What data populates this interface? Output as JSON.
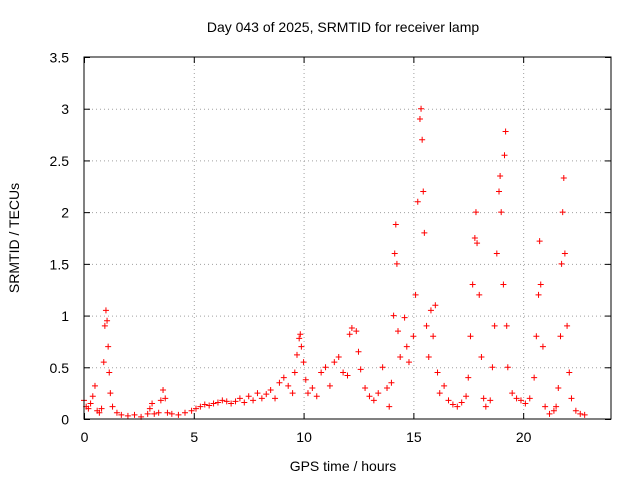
{
  "chart_data": {
    "type": "scatter",
    "title": "Day 043 of 2025, SRMTID for receiver lamp",
    "xlabel": "GPS time / hours",
    "ylabel": "SRMTID / TECUs",
    "xlim": [
      0,
      24
    ],
    "ylim": [
      0,
      3.5
    ],
    "xticks": [
      0,
      5,
      10,
      15,
      20
    ],
    "xtick_labels": [
      "0",
      "5",
      "10",
      "15",
      "20"
    ],
    "yticks": [
      0,
      0.5,
      1,
      1.5,
      2,
      2.5,
      3,
      3.5
    ],
    "ytick_labels": [
      "0",
      "0.5",
      "1",
      "1.5",
      "2",
      "2.5",
      "3",
      "3.5"
    ],
    "grid": true,
    "marker": "+",
    "color": "#ff0000",
    "series": [
      {
        "name": "SRMTID",
        "points": [
          [
            0.0,
            0.18
          ],
          [
            0.1,
            0.12
          ],
          [
            0.2,
            0.1
          ],
          [
            0.3,
            0.15
          ],
          [
            0.4,
            0.22
          ],
          [
            0.5,
            0.32
          ],
          [
            0.6,
            0.08
          ],
          [
            0.7,
            0.06
          ],
          [
            0.8,
            0.1
          ],
          [
            0.9,
            0.55
          ],
          [
            0.95,
            0.9
          ],
          [
            1.0,
            1.05
          ],
          [
            1.05,
            0.95
          ],
          [
            1.1,
            0.7
          ],
          [
            1.15,
            0.45
          ],
          [
            1.2,
            0.25
          ],
          [
            1.3,
            0.12
          ],
          [
            1.5,
            0.06
          ],
          [
            1.7,
            0.04
          ],
          [
            2.0,
            0.03
          ],
          [
            2.3,
            0.04
          ],
          [
            2.6,
            0.02
          ],
          [
            2.9,
            0.05
          ],
          [
            3.0,
            0.1
          ],
          [
            3.1,
            0.15
          ],
          [
            3.2,
            0.05
          ],
          [
            3.4,
            0.06
          ],
          [
            3.5,
            0.18
          ],
          [
            3.6,
            0.28
          ],
          [
            3.7,
            0.2
          ],
          [
            3.8,
            0.06
          ],
          [
            4.0,
            0.05
          ],
          [
            4.3,
            0.04
          ],
          [
            4.6,
            0.06
          ],
          [
            4.9,
            0.08
          ],
          [
            5.1,
            0.1
          ],
          [
            5.3,
            0.12
          ],
          [
            5.5,
            0.14
          ],
          [
            5.7,
            0.13
          ],
          [
            5.9,
            0.15
          ],
          [
            6.1,
            0.16
          ],
          [
            6.3,
            0.18
          ],
          [
            6.5,
            0.17
          ],
          [
            6.7,
            0.15
          ],
          [
            6.9,
            0.17
          ],
          [
            7.1,
            0.2
          ],
          [
            7.3,
            0.16
          ],
          [
            7.5,
            0.22
          ],
          [
            7.7,
            0.18
          ],
          [
            7.9,
            0.25
          ],
          [
            8.1,
            0.2
          ],
          [
            8.3,
            0.24
          ],
          [
            8.5,
            0.28
          ],
          [
            8.7,
            0.2
          ],
          [
            8.9,
            0.35
          ],
          [
            9.1,
            0.4
          ],
          [
            9.3,
            0.32
          ],
          [
            9.5,
            0.25
          ],
          [
            9.6,
            0.45
          ],
          [
            9.7,
            0.62
          ],
          [
            9.8,
            0.78
          ],
          [
            9.85,
            0.82
          ],
          [
            9.9,
            0.7
          ],
          [
            10.0,
            0.55
          ],
          [
            10.1,
            0.38
          ],
          [
            10.2,
            0.25
          ],
          [
            10.4,
            0.3
          ],
          [
            10.6,
            0.22
          ],
          [
            10.8,
            0.45
          ],
          [
            11.0,
            0.5
          ],
          [
            11.2,
            0.32
          ],
          [
            11.4,
            0.55
          ],
          [
            11.6,
            0.6
          ],
          [
            11.8,
            0.45
          ],
          [
            12.0,
            0.42
          ],
          [
            12.1,
            0.82
          ],
          [
            12.2,
            0.88
          ],
          [
            12.4,
            0.85
          ],
          [
            12.5,
            0.65
          ],
          [
            12.6,
            0.48
          ],
          [
            12.8,
            0.3
          ],
          [
            13.0,
            0.22
          ],
          [
            13.2,
            0.18
          ],
          [
            13.4,
            0.25
          ],
          [
            13.6,
            0.5
          ],
          [
            13.8,
            0.3
          ],
          [
            13.9,
            0.12
          ],
          [
            14.0,
            0.35
          ],
          [
            14.1,
            1.0
          ],
          [
            14.15,
            1.6
          ],
          [
            14.2,
            1.88
          ],
          [
            14.25,
            1.5
          ],
          [
            14.3,
            0.85
          ],
          [
            14.4,
            0.6
          ],
          [
            14.6,
            0.98
          ],
          [
            14.7,
            0.7
          ],
          [
            14.8,
            0.55
          ],
          [
            15.0,
            0.8
          ],
          [
            15.1,
            1.2
          ],
          [
            15.2,
            2.1
          ],
          [
            15.3,
            2.9
          ],
          [
            15.35,
            3.0
          ],
          [
            15.4,
            2.7
          ],
          [
            15.45,
            2.2
          ],
          [
            15.5,
            1.8
          ],
          [
            15.6,
            0.9
          ],
          [
            15.7,
            0.6
          ],
          [
            15.8,
            1.05
          ],
          [
            15.9,
            0.8
          ],
          [
            16.0,
            1.1
          ],
          [
            16.1,
            0.45
          ],
          [
            16.2,
            0.25
          ],
          [
            16.4,
            0.32
          ],
          [
            16.6,
            0.18
          ],
          [
            16.8,
            0.14
          ],
          [
            17.0,
            0.12
          ],
          [
            17.2,
            0.16
          ],
          [
            17.4,
            0.22
          ],
          [
            17.5,
            0.4
          ],
          [
            17.6,
            0.8
          ],
          [
            17.7,
            1.3
          ],
          [
            17.8,
            1.75
          ],
          [
            17.85,
            2.0
          ],
          [
            17.9,
            1.7
          ],
          [
            18.0,
            1.2
          ],
          [
            18.1,
            0.6
          ],
          [
            18.2,
            0.2
          ],
          [
            18.3,
            0.12
          ],
          [
            18.5,
            0.18
          ],
          [
            18.6,
            0.5
          ],
          [
            18.7,
            0.9
          ],
          [
            18.8,
            1.6
          ],
          [
            18.9,
            2.2
          ],
          [
            18.95,
            2.35
          ],
          [
            19.0,
            2.0
          ],
          [
            19.1,
            1.3
          ],
          [
            19.15,
            2.55
          ],
          [
            19.2,
            2.78
          ],
          [
            19.25,
            0.9
          ],
          [
            19.3,
            0.5
          ],
          [
            19.5,
            0.25
          ],
          [
            19.7,
            0.2
          ],
          [
            19.9,
            0.18
          ],
          [
            20.1,
            0.15
          ],
          [
            20.3,
            0.2
          ],
          [
            20.5,
            0.4
          ],
          [
            20.6,
            0.8
          ],
          [
            20.7,
            1.2
          ],
          [
            20.75,
            1.72
          ],
          [
            20.8,
            1.3
          ],
          [
            20.9,
            0.7
          ],
          [
            21.0,
            0.12
          ],
          [
            21.2,
            0.05
          ],
          [
            21.4,
            0.08
          ],
          [
            21.5,
            0.12
          ],
          [
            21.6,
            0.3
          ],
          [
            21.7,
            0.8
          ],
          [
            21.75,
            1.5
          ],
          [
            21.8,
            2.0
          ],
          [
            21.85,
            2.33
          ],
          [
            21.9,
            1.6
          ],
          [
            22.0,
            0.9
          ],
          [
            22.1,
            0.45
          ],
          [
            22.2,
            0.2
          ],
          [
            22.4,
            0.08
          ],
          [
            22.6,
            0.05
          ],
          [
            22.8,
            0.04
          ]
        ]
      }
    ]
  }
}
